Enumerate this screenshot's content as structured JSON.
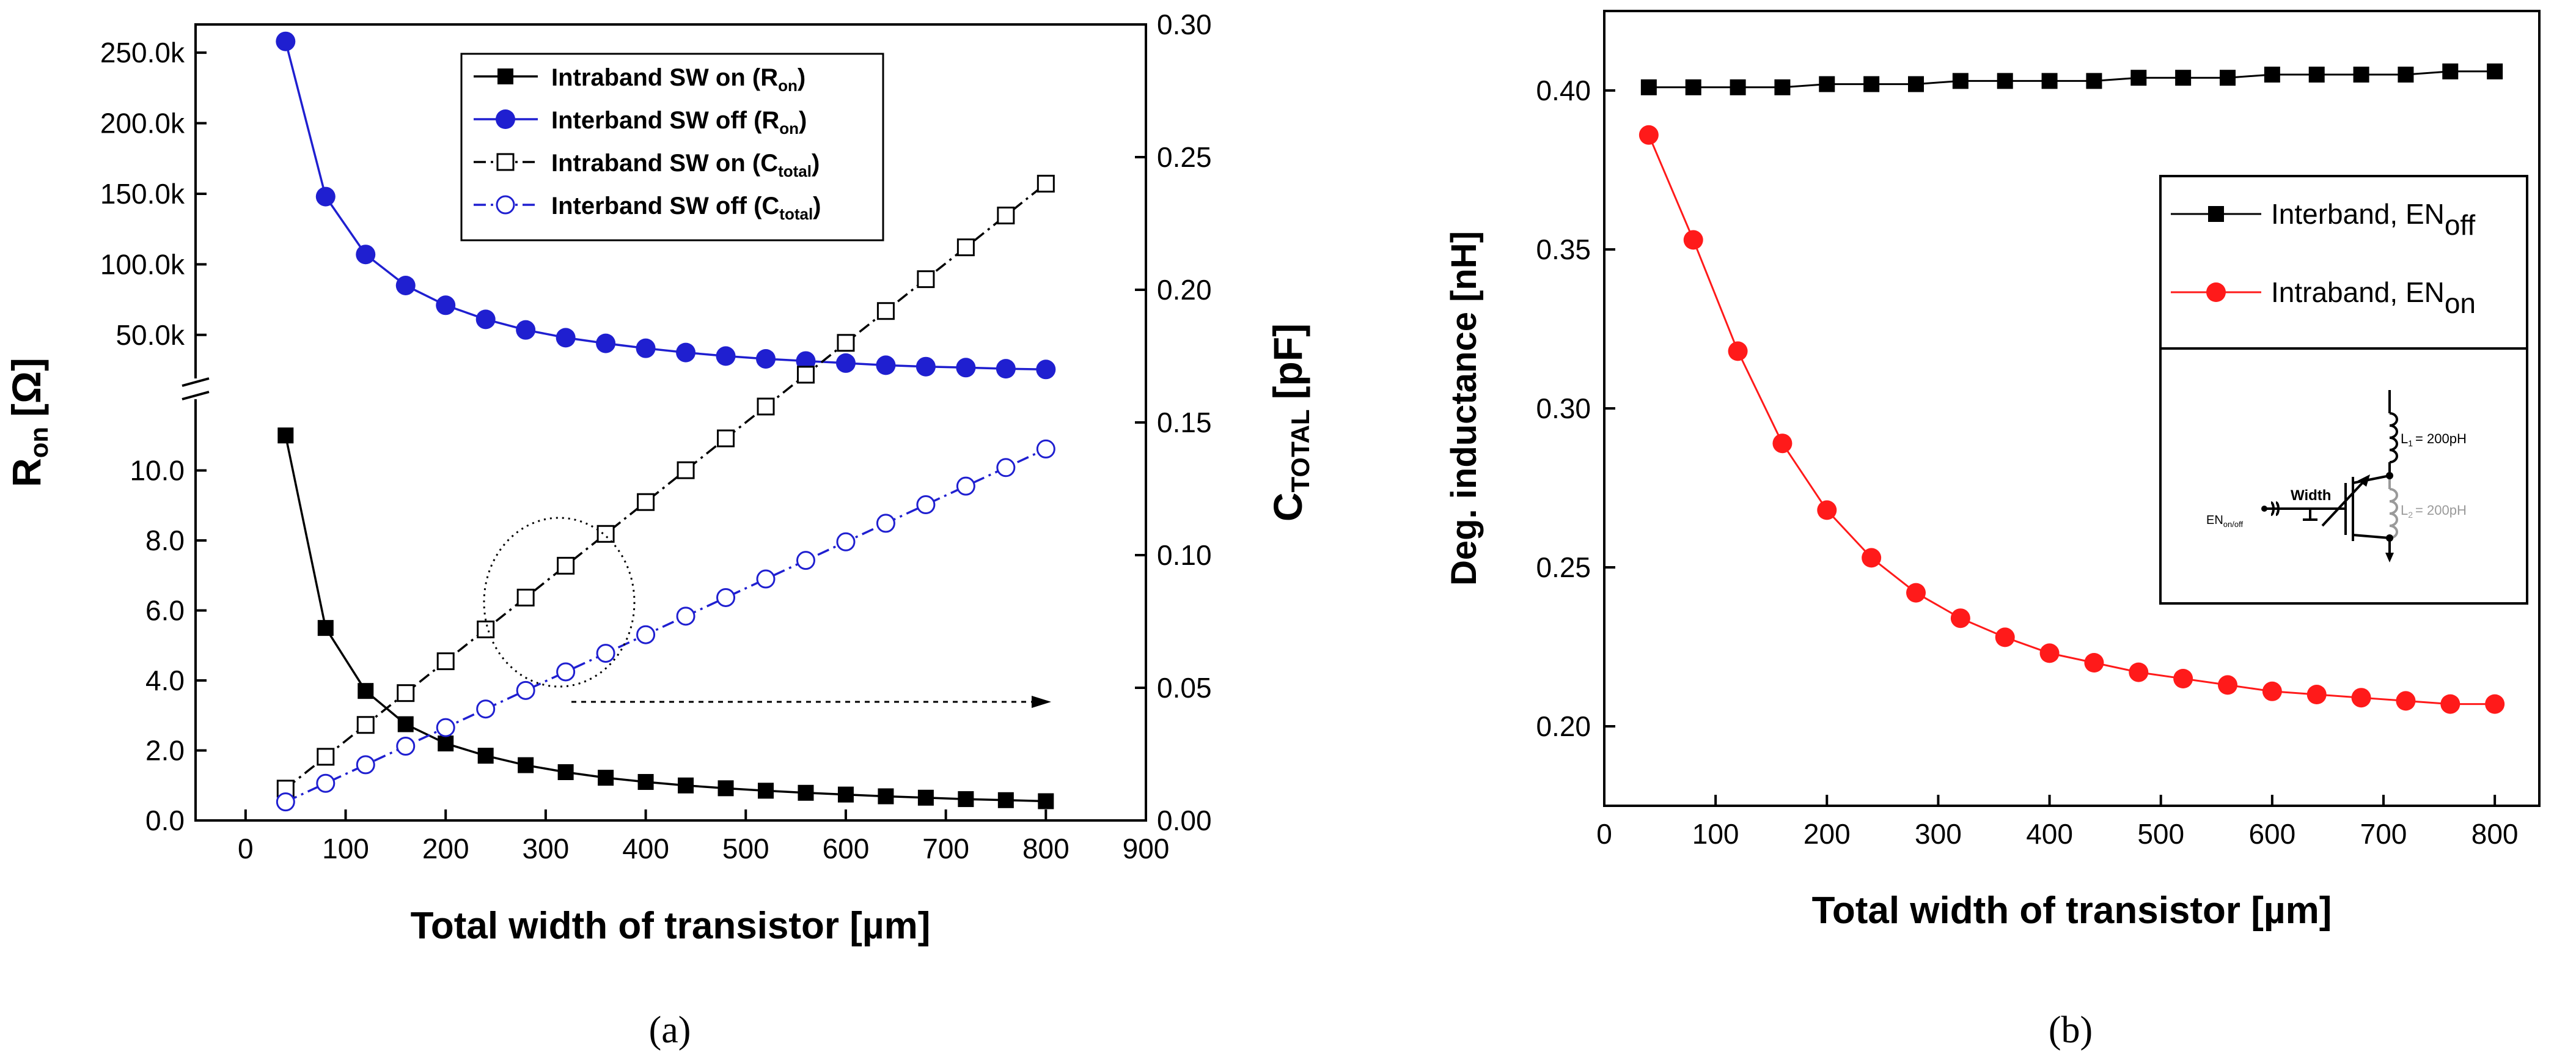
{
  "chart_data": [
    {
      "panel_label": "(a)",
      "type": "line",
      "xlabel": "Total width of transistor [µm]",
      "ylabel_left": {
        "main": "R",
        "sub": "on",
        "unit": "[Ω]"
      },
      "ylabel_right": {
        "main": "C",
        "sub": "TOTAL",
        "unit": "[pF]"
      },
      "xlim": [
        -50,
        900
      ],
      "x_ticks": [
        "0",
        "100",
        "200",
        "300",
        "400",
        "500",
        "600",
        "700",
        "800",
        "900"
      ],
      "x_tick_values": [
        0,
        100,
        200,
        300,
        400,
        500,
        600,
        700,
        800,
        900
      ],
      "y_left_lower": {
        "ylim": [
          0,
          12
        ],
        "ticks": [
          "0.0",
          "2.0",
          "4.0",
          "6.0",
          "8.0",
          "10.0"
        ],
        "tick_values": [
          0,
          2,
          4,
          6,
          8,
          10
        ]
      },
      "y_left_upper": {
        "ylim": [
          20000,
          270000
        ],
        "ticks": [
          "50.0k",
          "100.0k",
          "150.0k",
          "200.0k",
          "250.0k"
        ],
        "tick_values": [
          50000,
          100000,
          150000,
          200000,
          250000
        ]
      },
      "y_right": {
        "ylim": [
          0,
          0.3
        ],
        "ticks": [
          "0.00",
          "0.05",
          "0.10",
          "0.15",
          "0.20",
          "0.25",
          "0.30"
        ],
        "tick_values": [
          0,
          0.05,
          0.1,
          0.15,
          0.2,
          0.25,
          0.3
        ]
      },
      "legend_position": "top-center",
      "x": [
        40,
        80,
        120,
        160,
        200,
        240,
        280,
        320,
        360,
        400,
        440,
        480,
        520,
        560,
        600,
        640,
        680,
        720,
        760,
        800
      ],
      "series": [
        {
          "label_main": "Intraband SW on (R",
          "label_sub": "on",
          "label_end": ")",
          "axis": "left_lower",
          "color": "#000000",
          "marker": "square-filled",
          "line": "solid",
          "values": [
            11.0,
            5.5,
            3.7,
            2.75,
            2.2,
            1.85,
            1.58,
            1.38,
            1.22,
            1.1,
            1.0,
            0.92,
            0.85,
            0.79,
            0.74,
            0.69,
            0.65,
            0.61,
            0.58,
            0.55
          ]
        },
        {
          "label_main": "Interband SW off (R",
          "label_sub": "on",
          "label_end": ")",
          "axis": "left_upper",
          "color": "#1f1fd0",
          "marker": "circle-filled",
          "line": "solid",
          "values": [
            258000,
            148000,
            107000,
            85000,
            71000,
            61000,
            53500,
            48000,
            44000,
            40500,
            37500,
            35000,
            33000,
            31500,
            30000,
            28500,
            27500,
            26800,
            26000,
            25500
          ]
        },
        {
          "label_main": "Intraband SW on (C",
          "label_sub": "total",
          "label_end": ")",
          "axis": "right",
          "color": "#000000",
          "marker": "square-open",
          "line": "dashdot",
          "values": [
            0.012,
            0.024,
            0.036,
            0.048,
            0.06,
            0.072,
            0.084,
            0.096,
            0.108,
            0.12,
            0.132,
            0.144,
            0.156,
            0.168,
            0.18,
            0.192,
            0.204,
            0.216,
            0.228,
            0.24
          ]
        },
        {
          "label_main": "Interband SW off (C",
          "label_sub": "total",
          "label_end": ")",
          "axis": "right",
          "color": "#1f1fd0",
          "marker": "circle-open",
          "line": "dashdot",
          "values": [
            0.007,
            0.014,
            0.021,
            0.028,
            0.035,
            0.042,
            0.049,
            0.056,
            0.063,
            0.07,
            0.077,
            0.084,
            0.091,
            0.098,
            0.105,
            0.112,
            0.119,
            0.126,
            0.133,
            0.14
          ]
        }
      ]
    },
    {
      "panel_label": "(b)",
      "type": "line",
      "xlabel": "Total width of transistor [µm]",
      "ylabel": "Deg. inductance [nH]",
      "xlim": [
        0,
        840
      ],
      "ylim": [
        0.175,
        0.425
      ],
      "x_ticks": [
        "0",
        "100",
        "200",
        "300",
        "400",
        "500",
        "600",
        "700",
        "800"
      ],
      "x_tick_values": [
        0,
        100,
        200,
        300,
        400,
        500,
        600,
        700,
        800
      ],
      "y_ticks": [
        "0.20",
        "0.25",
        "0.30",
        "0.35",
        "0.40"
      ],
      "y_tick_values": [
        0.2,
        0.25,
        0.3,
        0.35,
        0.4
      ],
      "legend_position": "right",
      "x": [
        40,
        80,
        120,
        160,
        200,
        240,
        280,
        320,
        360,
        400,
        440,
        480,
        520,
        560,
        600,
        640,
        680,
        720,
        760,
        800
      ],
      "series": [
        {
          "label_main": "Interband, EN",
          "label_sub": "off",
          "color": "#000000",
          "marker": "square-filled",
          "values": [
            0.401,
            0.401,
            0.401,
            0.401,
            0.402,
            0.402,
            0.402,
            0.403,
            0.403,
            0.403,
            0.403,
            0.404,
            0.404,
            0.404,
            0.405,
            0.405,
            0.405,
            0.405,
            0.406,
            0.406
          ]
        },
        {
          "label_main": "Intraband, EN",
          "label_sub": "on",
          "color": "#ff1a1a",
          "marker": "circle-filled",
          "values": [
            0.386,
            0.353,
            0.318,
            0.289,
            0.268,
            0.253,
            0.242,
            0.234,
            0.228,
            0.223,
            0.22,
            0.217,
            0.215,
            0.213,
            0.211,
            0.21,
            0.209,
            0.208,
            0.207,
            0.207
          ]
        }
      ],
      "inset": {
        "width_label": "Width",
        "en_label_main": "EN",
        "en_label_sub": "on/off",
        "l1_main": "L",
        "l1_sub": "1",
        "l1_value": "= 200pH",
        "l2_main": "L",
        "l2_sub": "2",
        "l2_value": "= 200pH"
      }
    }
  ]
}
